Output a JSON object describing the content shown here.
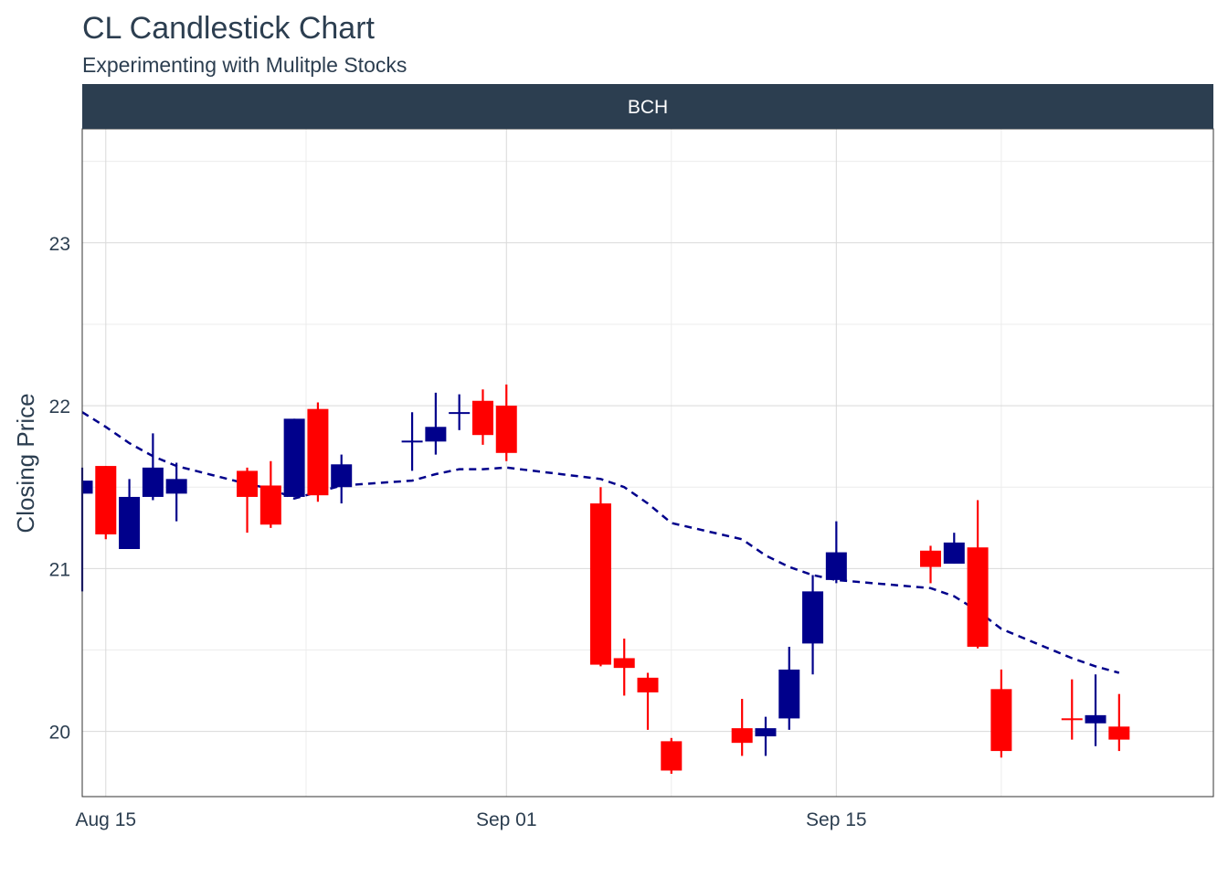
{
  "title": "CL Candlestick Chart",
  "subtitle": "Experimenting with Mulitple Stocks",
  "colors": {
    "up": "#00008B",
    "down": "#FF0000",
    "strip": "#2c3e50",
    "text": "#2c3e50",
    "grid": "#d9d9d9",
    "ma": "#00008B"
  },
  "chart_data": {
    "type": "candlestick",
    "facet_label": "BCH",
    "ylabel": "Closing Price",
    "xlabel": "",
    "x_ticks": [
      {
        "date": "2017-08-15",
        "label": "Aug 15"
      },
      {
        "date": "2017-09-01",
        "label": "Sep 01"
      },
      {
        "date": "2017-09-15",
        "label": "Sep 15"
      }
    ],
    "y_ticks": [
      20,
      21,
      22,
      23
    ],
    "xlim": [
      "2017-08-14",
      "2017-10-01"
    ],
    "ylim": [
      19.6,
      23.7
    ],
    "grid": true,
    "candles": [
      {
        "date": "2017-08-14",
        "open": 21.46,
        "high": 21.62,
        "low": 20.86,
        "close": 21.54
      },
      {
        "date": "2017-08-15",
        "open": 21.63,
        "high": 21.63,
        "low": 21.18,
        "close": 21.21
      },
      {
        "date": "2017-08-16",
        "open": 21.12,
        "high": 21.55,
        "low": 21.12,
        "close": 21.44
      },
      {
        "date": "2017-08-17",
        "open": 21.44,
        "high": 21.83,
        "low": 21.42,
        "close": 21.62
      },
      {
        "date": "2017-08-18",
        "open": 21.46,
        "high": 21.65,
        "low": 21.29,
        "close": 21.55
      },
      {
        "date": "2017-08-21",
        "open": 21.6,
        "high": 21.62,
        "low": 21.22,
        "close": 21.44
      },
      {
        "date": "2017-08-22",
        "open": 21.51,
        "high": 21.66,
        "low": 21.25,
        "close": 21.27
      },
      {
        "date": "2017-08-23",
        "open": 21.44,
        "high": 21.92,
        "low": 21.44,
        "close": 21.92
      },
      {
        "date": "2017-08-24",
        "open": 21.98,
        "high": 22.02,
        "low": 21.41,
        "close": 21.45
      },
      {
        "date": "2017-08-25",
        "open": 21.5,
        "high": 21.7,
        "low": 21.4,
        "close": 21.64
      },
      {
        "date": "2017-08-28",
        "open": 21.78,
        "high": 21.96,
        "low": 21.6,
        "close": 21.78
      },
      {
        "date": "2017-08-29",
        "open": 21.78,
        "high": 22.08,
        "low": 21.7,
        "close": 21.87
      },
      {
        "date": "2017-08-30",
        "open": 21.95,
        "high": 22.07,
        "low": 21.85,
        "close": 21.96
      },
      {
        "date": "2017-08-31",
        "open": 22.03,
        "high": 22.1,
        "low": 21.76,
        "close": 21.82
      },
      {
        "date": "2017-09-01",
        "open": 22.0,
        "high": 22.13,
        "low": 21.66,
        "close": 21.71
      },
      {
        "date": "2017-09-05",
        "open": 21.4,
        "high": 21.5,
        "low": 20.4,
        "close": 20.41
      },
      {
        "date": "2017-09-06",
        "open": 20.45,
        "high": 20.57,
        "low": 20.22,
        "close": 20.39
      },
      {
        "date": "2017-09-07",
        "open": 20.33,
        "high": 20.36,
        "low": 20.01,
        "close": 20.24
      },
      {
        "date": "2017-09-08",
        "open": 19.94,
        "high": 19.96,
        "low": 19.74,
        "close": 19.76
      },
      {
        "date": "2017-09-11",
        "open": 20.02,
        "high": 20.2,
        "low": 19.85,
        "close": 19.93
      },
      {
        "date": "2017-09-12",
        "open": 19.97,
        "high": 20.09,
        "low": 19.85,
        "close": 20.02
      },
      {
        "date": "2017-09-13",
        "open": 20.08,
        "high": 20.52,
        "low": 20.01,
        "close": 20.38
      },
      {
        "date": "2017-09-14",
        "open": 20.54,
        "high": 20.96,
        "low": 20.35,
        "close": 20.86
      },
      {
        "date": "2017-09-15",
        "open": 20.93,
        "high": 21.29,
        "low": 20.91,
        "close": 21.1
      },
      {
        "date": "2017-09-19",
        "open": 21.11,
        "high": 21.14,
        "low": 20.91,
        "close": 21.01
      },
      {
        "date": "2017-09-20",
        "open": 21.03,
        "high": 21.22,
        "low": 21.03,
        "close": 21.16
      },
      {
        "date": "2017-09-21",
        "open": 21.13,
        "high": 21.42,
        "low": 20.51,
        "close": 20.52
      },
      {
        "date": "2017-09-22",
        "open": 20.26,
        "high": 20.38,
        "low": 19.84,
        "close": 19.88
      },
      {
        "date": "2017-09-25",
        "open": 20.08,
        "high": 20.32,
        "low": 19.95,
        "close": 20.07
      },
      {
        "date": "2017-09-26",
        "open": 20.05,
        "high": 20.35,
        "low": 19.91,
        "close": 20.1
      },
      {
        "date": "2017-09-27",
        "open": 20.03,
        "high": 20.23,
        "low": 19.88,
        "close": 19.95
      }
    ],
    "moving_average": [
      {
        "date": "2017-08-14",
        "value": 21.96
      },
      {
        "date": "2017-08-15",
        "value": 21.87
      },
      {
        "date": "2017-08-16",
        "value": 21.77
      },
      {
        "date": "2017-08-17",
        "value": 21.69
      },
      {
        "date": "2017-08-18",
        "value": 21.63
      },
      {
        "date": "2017-08-21",
        "value": 21.52
      },
      {
        "date": "2017-08-22",
        "value": 21.49
      },
      {
        "date": "2017-08-23",
        "value": 21.43
      },
      {
        "date": "2017-08-24",
        "value": 21.47
      },
      {
        "date": "2017-08-25",
        "value": 21.51
      },
      {
        "date": "2017-08-28",
        "value": 21.54
      },
      {
        "date": "2017-08-29",
        "value": 21.58
      },
      {
        "date": "2017-08-30",
        "value": 21.61
      },
      {
        "date": "2017-08-31",
        "value": 21.61
      },
      {
        "date": "2017-09-01",
        "value": 21.62
      },
      {
        "date": "2017-09-05",
        "value": 21.55
      },
      {
        "date": "2017-09-06",
        "value": 21.5
      },
      {
        "date": "2017-09-07",
        "value": 21.4
      },
      {
        "date": "2017-09-08",
        "value": 21.28
      },
      {
        "date": "2017-09-11",
        "value": 21.18
      },
      {
        "date": "2017-09-12",
        "value": 21.08
      },
      {
        "date": "2017-09-13",
        "value": 21.01
      },
      {
        "date": "2017-09-14",
        "value": 20.96
      },
      {
        "date": "2017-09-15",
        "value": 20.93
      },
      {
        "date": "2017-09-19",
        "value": 20.88
      },
      {
        "date": "2017-09-20",
        "value": 20.83
      },
      {
        "date": "2017-09-21",
        "value": 20.74
      },
      {
        "date": "2017-09-22",
        "value": 20.63
      },
      {
        "date": "2017-09-25",
        "value": 20.45
      },
      {
        "date": "2017-09-26",
        "value": 20.4
      },
      {
        "date": "2017-09-27",
        "value": 20.36
      }
    ]
  }
}
